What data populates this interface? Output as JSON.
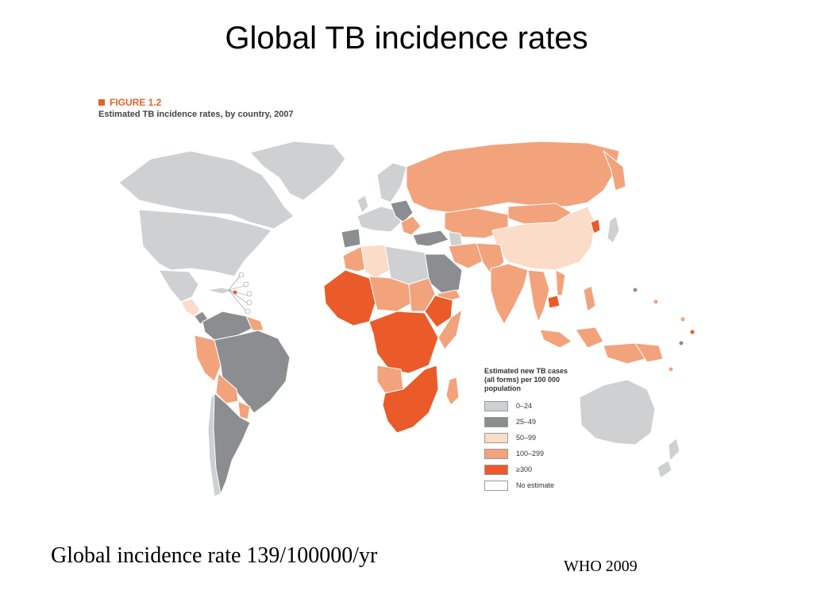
{
  "slide": {
    "title": "Global TB incidence rates",
    "footer_note": "Global incidence rate 139/100000/yr",
    "source": "WHO 2009"
  },
  "figure": {
    "label": "FIGURE 1.2",
    "caption": "Estimated TB incidence rates, by country, 2007"
  },
  "legend": {
    "title": "Estimated new TB cases (all forms) per 100 000 population",
    "items": [
      {
        "label": "0–24",
        "color": "#cfd0d2"
      },
      {
        "label": "25–49",
        "color": "#8c8d90"
      },
      {
        "label": "50–99",
        "color": "#fbdcc8"
      },
      {
        "label": "100–299",
        "color": "#f2a37c"
      },
      {
        "label": "≥300",
        "color": "#ea5b29"
      },
      {
        "label": "No estimate",
        "color": "#ffffff"
      }
    ]
  }
}
